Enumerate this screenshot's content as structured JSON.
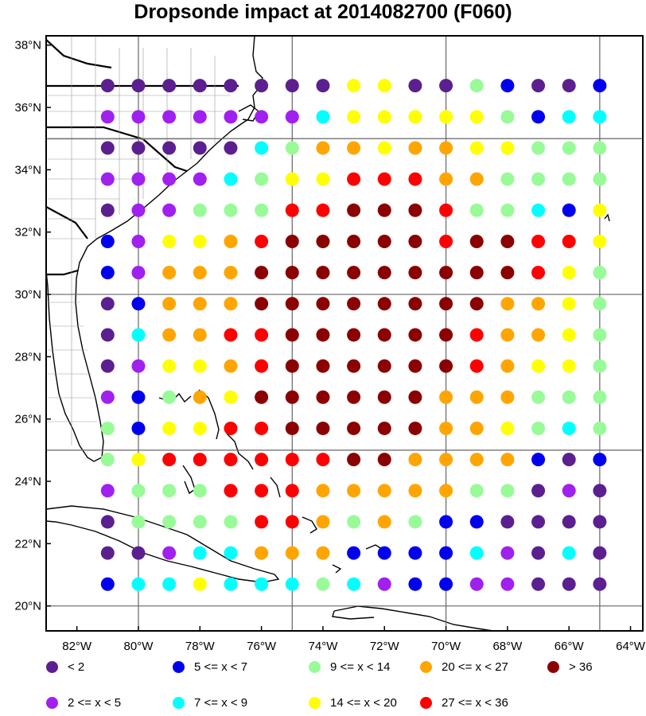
{
  "title": "Dropsonde impact at 2014082700 (F060)",
  "map": {
    "lat_labels": [
      "38°N",
      "36°N",
      "34°N",
      "32°N",
      "30°N",
      "28°N",
      "26°N",
      "24°N",
      "22°N",
      "20°N"
    ],
    "lon_labels": [
      "82°W",
      "80°W",
      "78°W",
      "76°W",
      "74°W",
      "72°W",
      "70°W",
      "68°W",
      "66°W",
      "64°W"
    ],
    "lon_range": [
      -83,
      -63.6
    ],
    "lat_range": [
      19.2,
      38.3
    ],
    "grid_lons": [
      -80,
      -75,
      -70,
      -65
    ],
    "grid_lats": [
      20,
      25,
      30,
      35
    ],
    "point_lons": [
      -81,
      -80,
      -79,
      -78,
      -77,
      -76,
      -75,
      -74,
      -73,
      -72,
      -71,
      -70,
      -69,
      -68,
      -67,
      -66,
      -65
    ],
    "point_lats": [
      36.7,
      35.7,
      34.7,
      33.7,
      32.7,
      31.7,
      30.7,
      29.7,
      28.7,
      27.7,
      26.7,
      25.7,
      24.7,
      23.7,
      22.7,
      21.7,
      20.7
    ],
    "category_colors": [
      "#5c1f8f",
      "#a020f0",
      "#0000ee",
      "#00ffff",
      "#98fb98",
      "#ffff00",
      "#ffa500",
      "#ff0000",
      "#8b0000"
    ],
    "impact_grid": [
      "00000000550042002",
      "11111113555554233",
      "00000346656655444",
      "11113455777664444",
      "01144477888744325",
      "21556788888788775",
      "21666888888888754",
      "02666888888886654",
      "03667788888876654",
      "01556788888876554",
      "12465888888666444",
      "42557788888665434",
      "45777777886666202",
      "14447776666644010",
      "04444776464220000",
      "00133666222231030",
      "23353334312211000"
    ]
  },
  "legend": [
    {
      "label": "<  2",
      "color": "#5c1f8f"
    },
    {
      "label": "2 <= x <  5",
      "color": "#a020f0"
    },
    {
      "label": "5 <= x <  7",
      "color": "#0000ee"
    },
    {
      "label": "7 <= x <  9",
      "color": "#00ffff"
    },
    {
      "label": "9 <= x < 14",
      "color": "#98fb98"
    },
    {
      "label": "14 <= x < 20",
      "color": "#ffff00"
    },
    {
      "label": "20 <= x < 27",
      "color": "#ffa500"
    },
    {
      "label": "27 <= x < 36",
      "color": "#ff0000"
    },
    {
      "label": "> 36",
      "color": "#8b0000"
    }
  ]
}
